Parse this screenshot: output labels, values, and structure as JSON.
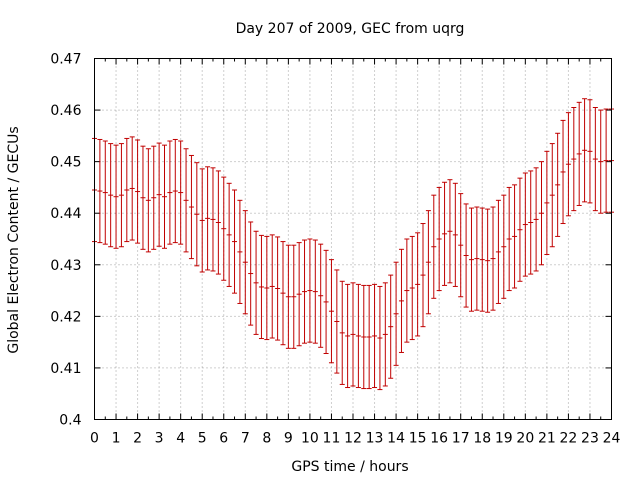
{
  "chart_data": {
    "type": "scatter",
    "title": "Day 207 of 2009, GEC from uqrg",
    "xlabel": "GPS time / hours",
    "ylabel": "Global Electron Content / GECUs",
    "xlim": [
      0,
      24
    ],
    "ylim": [
      0.4,
      0.47
    ],
    "xticks": [
      "0",
      "1",
      "2",
      "3",
      "4",
      "5",
      "6",
      "7",
      "8",
      "9",
      "10",
      "11",
      "12",
      "13",
      "14",
      "15",
      "16",
      "17",
      "18",
      "19",
      "20",
      "21",
      "22",
      "23",
      "24"
    ],
    "yticks": [
      "0.4",
      "0.41",
      "0.42",
      "0.43",
      "0.44",
      "0.45",
      "0.46",
      "0.47"
    ],
    "grid": true,
    "series": [
      {
        "color": "#c00000",
        "error": 0.01,
        "x": [
          0,
          0.25,
          0.5,
          0.75,
          1,
          1.25,
          1.5,
          1.75,
          2,
          2.25,
          2.5,
          2.75,
          3,
          3.25,
          3.5,
          3.75,
          4,
          4.25,
          4.5,
          4.75,
          5,
          5.25,
          5.5,
          5.75,
          6,
          6.25,
          6.5,
          6.75,
          7,
          7.25,
          7.5,
          7.75,
          8,
          8.25,
          8.5,
          8.75,
          9,
          9.25,
          9.5,
          9.75,
          10,
          10.25,
          10.5,
          10.75,
          11,
          11.25,
          11.5,
          11.75,
          12,
          12.25,
          12.5,
          12.75,
          13,
          13.25,
          13.5,
          13.75,
          14,
          14.25,
          14.5,
          14.75,
          15,
          15.25,
          15.5,
          15.75,
          16,
          16.25,
          16.5,
          16.75,
          17,
          17.25,
          17.5,
          17.75,
          18,
          18.25,
          18.5,
          18.75,
          19,
          19.25,
          19.5,
          19.75,
          20,
          20.25,
          20.5,
          20.75,
          21,
          21.25,
          21.5,
          21.75,
          22,
          22.25,
          22.5,
          22.75,
          23,
          23.25,
          23.5,
          23.75,
          24
        ],
        "y": [
          0.4445,
          0.4443,
          0.444,
          0.4435,
          0.4432,
          0.4435,
          0.4445,
          0.4448,
          0.4442,
          0.443,
          0.4425,
          0.443,
          0.4436,
          0.4432,
          0.444,
          0.4443,
          0.444,
          0.4425,
          0.4412,
          0.4398,
          0.4386,
          0.439,
          0.4388,
          0.4382,
          0.437,
          0.4358,
          0.4345,
          0.4325,
          0.4305,
          0.4283,
          0.4265,
          0.4257,
          0.4255,
          0.4258,
          0.4254,
          0.4245,
          0.4238,
          0.4238,
          0.4243,
          0.4248,
          0.425,
          0.4248,
          0.424,
          0.4228,
          0.421,
          0.419,
          0.4168,
          0.4162,
          0.4165,
          0.4162,
          0.416,
          0.416,
          0.4162,
          0.4158,
          0.4165,
          0.418,
          0.4205,
          0.423,
          0.425,
          0.4255,
          0.4262,
          0.428,
          0.4305,
          0.4335,
          0.435,
          0.436,
          0.4365,
          0.4358,
          0.4338,
          0.4318,
          0.431,
          0.4312,
          0.431,
          0.4308,
          0.4312,
          0.4325,
          0.4335,
          0.435,
          0.4355,
          0.4368,
          0.4378,
          0.4382,
          0.4388,
          0.44,
          0.442,
          0.4435,
          0.4455,
          0.448,
          0.4495,
          0.4505,
          0.4515,
          0.4522,
          0.452,
          0.4505,
          0.45,
          0.4502,
          0.4502
        ]
      }
    ]
  }
}
